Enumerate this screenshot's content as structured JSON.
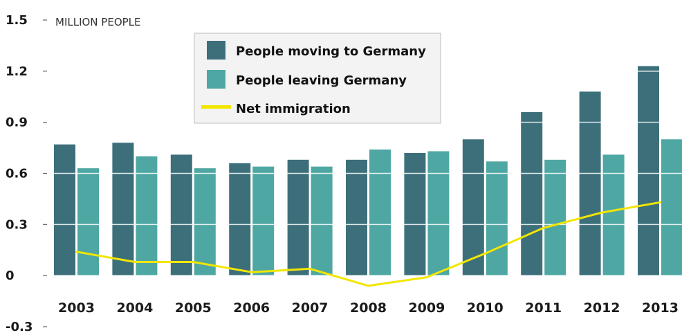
{
  "chart_data": {
    "type": "bar",
    "title": "",
    "unit_label": "MILLION PEOPLE",
    "xlabel": "",
    "ylabel": "",
    "ylim": [
      -0.3,
      1.5
    ],
    "yticks": [
      "1.5",
      "1.2",
      "0.9",
      "0.6",
      "0.3",
      "0",
      "-0.3"
    ],
    "ytick_values": [
      1.5,
      1.2,
      0.9,
      0.6,
      0.3,
      0,
      -0.3
    ],
    "categories": [
      "2003",
      "2004",
      "2005",
      "2006",
      "2007",
      "2008",
      "2009",
      "2010",
      "2011",
      "2012",
      "2013"
    ],
    "series": [
      {
        "name": "People moving to Germany",
        "type": "bar",
        "color": "#3d6f7b",
        "values": [
          0.77,
          0.78,
          0.71,
          0.66,
          0.68,
          0.68,
          0.72,
          0.8,
          0.96,
          1.08,
          1.23
        ]
      },
      {
        "name": "People leaving Germany",
        "type": "bar",
        "color": "#4fa7a3",
        "values": [
          0.63,
          0.7,
          0.63,
          0.64,
          0.64,
          0.74,
          0.73,
          0.67,
          0.68,
          0.71,
          0.8
        ]
      },
      {
        "name": "Net immigration",
        "type": "line",
        "color": "#f2e600",
        "values": [
          0.14,
          0.08,
          0.08,
          0.02,
          0.04,
          -0.06,
          -0.01,
          0.13,
          0.28,
          0.37,
          0.43
        ]
      }
    ],
    "grid": true,
    "legend_position": "top-center"
  }
}
